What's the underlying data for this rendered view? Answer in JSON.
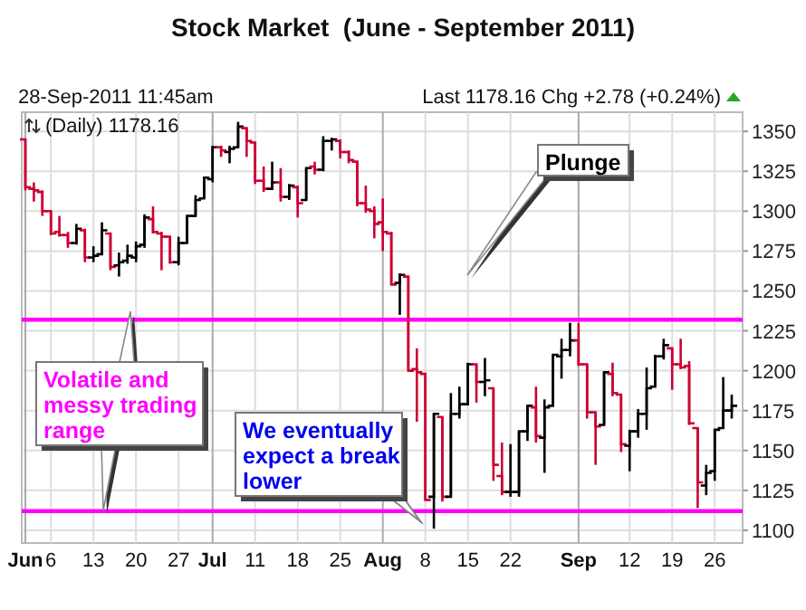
{
  "chart_data": {
    "type": "candlestick",
    "title": "Stock Market  (June - September 2011)",
    "categories": [
      "Jun",
      null,
      null,
      "6",
      null,
      null,
      null,
      null,
      "13",
      null,
      null,
      null,
      null,
      "20",
      null,
      null,
      null,
      null,
      "27",
      null,
      null,
      null,
      "Jul",
      null,
      null,
      null,
      null,
      "11",
      null,
      null,
      null,
      null,
      "18",
      null,
      null,
      null,
      null,
      "25",
      null,
      null,
      null,
      null,
      "Aug",
      null,
      null,
      null,
      null,
      "8",
      null,
      null,
      null,
      null,
      "15",
      null,
      null,
      null,
      null,
      "22",
      null,
      null,
      null,
      null,
      null,
      null,
      null,
      "Sep",
      null,
      null,
      null,
      null,
      null,
      "12",
      null,
      null,
      null,
      null,
      "19",
      null,
      null,
      null,
      null,
      "26",
      null,
      null
    ],
    "ohlc": [
      [
        1345,
        1345,
        1313,
        1315
      ],
      [
        1314,
        1318,
        1306,
        1313
      ],
      [
        1312,
        1313,
        1297,
        1300
      ],
      [
        1300,
        1300,
        1285,
        1286
      ],
      [
        1287,
        1297,
        1284,
        1285
      ],
      [
        1285,
        1287,
        1277,
        1280
      ],
      [
        1280,
        1292,
        1279,
        1289
      ],
      [
        1288,
        1289,
        1268,
        1271
      ],
      [
        1271,
        1278,
        1268,
        1272
      ],
      [
        1273,
        1293,
        1273,
        1288
      ],
      [
        1286,
        1286,
        1263,
        1265
      ],
      [
        1266,
        1274,
        1259,
        1268
      ],
      [
        1269,
        1279,
        1267,
        1272
      ],
      [
        1271,
        1281,
        1268,
        1278
      ],
      [
        1279,
        1298,
        1277,
        1296
      ],
      [
        1295,
        1303,
        1286,
        1287
      ],
      [
        1286,
        1287,
        1263,
        1284
      ],
      [
        1284,
        1284,
        1267,
        1268
      ],
      [
        1268,
        1284,
        1266,
        1280
      ],
      [
        1280,
        1297,
        1280,
        1297
      ],
      [
        1297,
        1310,
        1297,
        1307
      ],
      [
        1308,
        1321,
        1308,
        1321
      ],
      [
        1320,
        1341,
        1318,
        1340
      ],
      [
        1340,
        1341,
        1334,
        1338
      ],
      [
        1337,
        1341,
        1330,
        1339
      ],
      [
        1340,
        1356,
        1340,
        1353
      ],
      [
        1352,
        1352,
        1334,
        1344
      ],
      [
        1343,
        1343,
        1317,
        1319
      ],
      [
        1319,
        1328,
        1312,
        1314
      ],
      [
        1314,
        1331,
        1314,
        1318
      ],
      [
        1318,
        1327,
        1306,
        1309
      ],
      [
        1309,
        1317,
        1307,
        1316
      ],
      [
        1315,
        1316,
        1296,
        1305
      ],
      [
        1307,
        1327,
        1307,
        1327
      ],
      [
        1328,
        1331,
        1323,
        1326
      ],
      [
        1326,
        1347,
        1325,
        1344
      ],
      [
        1344,
        1346,
        1338,
        1345
      ],
      [
        1344,
        1345,
        1333,
        1337
      ],
      [
        1337,
        1338,
        1330,
        1332
      ],
      [
        1331,
        1331,
        1303,
        1305
      ],
      [
        1305,
        1316,
        1299,
        1301
      ],
      [
        1300,
        1303,
        1283,
        1292
      ],
      [
        1293,
        1308,
        1275,
        1287
      ],
      [
        1286,
        1287,
        1254,
        1254
      ],
      [
        1255,
        1261,
        1235,
        1260
      ],
      [
        1259,
        1259,
        1200,
        1200
      ],
      [
        1201,
        1214,
        1168,
        1199
      ],
      [
        1198,
        1198,
        1119,
        1119
      ],
      [
        1121,
        1173,
        1101,
        1173
      ],
      [
        1171,
        1171,
        1118,
        1121
      ],
      [
        1121,
        1186,
        1121,
        1173
      ],
      [
        1173,
        1190,
        1170,
        1179
      ],
      [
        1179,
        1205,
        1179,
        1204
      ],
      [
        1204,
        1204,
        1180,
        1193
      ],
      [
        1193,
        1208,
        1184,
        1194
      ],
      [
        1189,
        1189,
        1131,
        1141
      ],
      [
        1134,
        1155,
        1122,
        1124
      ],
      [
        1124,
        1154,
        1121,
        1124
      ],
      [
        1124,
        1162,
        1121,
        1162
      ],
      [
        1162,
        1178,
        1156,
        1178
      ],
      [
        1177,
        1190,
        1155,
        1159
      ],
      [
        1158,
        1182,
        1136,
        1177
      ],
      [
        1178,
        1210,
        1178,
        1210
      ],
      [
        1209,
        1220,
        1195,
        1213
      ],
      [
        1213,
        1230,
        1209,
        1219
      ],
      [
        1219,
        1230,
        1203,
        1204
      ],
      [
        1204,
        1204,
        1170,
        1174
      ],
      [
        1174,
        1174,
        1141,
        1165
      ],
      [
        1166,
        1199,
        1166,
        1199
      ],
      [
        1198,
        1205,
        1184,
        1186
      ],
      [
        1185,
        1185,
        1149,
        1154
      ],
      [
        1153,
        1163,
        1137,
        1162
      ],
      [
        1162,
        1176,
        1158,
        1173
      ],
      [
        1173,
        1202,
        1163,
        1189
      ],
      [
        1190,
        1210,
        1190,
        1209
      ],
      [
        1209,
        1220,
        1207,
        1216
      ],
      [
        1214,
        1214,
        1188,
        1204
      ],
      [
        1204,
        1220,
        1201,
        1202
      ],
      [
        1203,
        1206,
        1166,
        1167
      ],
      [
        1164,
        1164,
        1114,
        1130
      ],
      [
        1128,
        1141,
        1122,
        1136
      ],
      [
        1137,
        1163,
        1131,
        1163
      ],
      [
        1164,
        1196,
        1164,
        1175
      ],
      [
        1175,
        1185,
        1170,
        1178
      ]
    ],
    "colors": [
      "#cc0033",
      "#cc0033",
      "#cc0033",
      "#cc0033",
      "#cc0033",
      "#cc0033",
      "#000000",
      "#cc0033",
      "#000000",
      "#000000",
      "#cc0033",
      "#000000",
      "#000000",
      "#000000",
      "#000000",
      "#cc0033",
      "#cc0033",
      "#cc0033",
      "#000000",
      "#000000",
      "#000000",
      "#000000",
      "#000000",
      "#cc0033",
      "#000000",
      "#000000",
      "#cc0033",
      "#cc0033",
      "#cc0033",
      "#000000",
      "#cc0033",
      "#000000",
      "#cc0033",
      "#000000",
      "#cc0033",
      "#000000",
      "#000000",
      "#cc0033",
      "#cc0033",
      "#cc0033",
      "#cc0033",
      "#cc0033",
      "#cc0033",
      "#cc0033",
      "#000000",
      "#cc0033",
      "#cc0033",
      "#cc0033",
      "#000000",
      "#cc0033",
      "#000000",
      "#000000",
      "#000000",
      "#cc0033",
      "#000000",
      "#cc0033",
      "#cc0033",
      "#000000",
      "#000000",
      "#000000",
      "#cc0033",
      "#000000",
      "#000000",
      "#000000",
      "#000000",
      "#cc0033",
      "#cc0033",
      "#cc0033",
      "#000000",
      "#cc0033",
      "#cc0033",
      "#000000",
      "#000000",
      "#000000",
      "#000000",
      "#000000",
      "#cc0033",
      "#cc0033",
      "#cc0033",
      "#cc0033",
      "#000000",
      "#000000",
      "#000000",
      "#000000"
    ],
    "ylim": [
      1092,
      1362
    ],
    "yticks": [
      1100,
      1125,
      1150,
      1175,
      1200,
      1225,
      1250,
      1275,
      1300,
      1325,
      1350
    ],
    "grid": true,
    "ref_lines": [
      {
        "axis": "y",
        "value": 1232,
        "color": "#ff00ff"
      },
      {
        "axis": "y",
        "value": 1112,
        "color": "#ff00ff"
      }
    ],
    "annotations": [
      "28-Sep-2011 11:45am",
      "Last 1178.16  Chg +2.78 (+0.24%)",
      "(Daily) 1178.16",
      "Plunge",
      "Volatile and messy trading range",
      "We eventually expect a break lower"
    ]
  }
}
